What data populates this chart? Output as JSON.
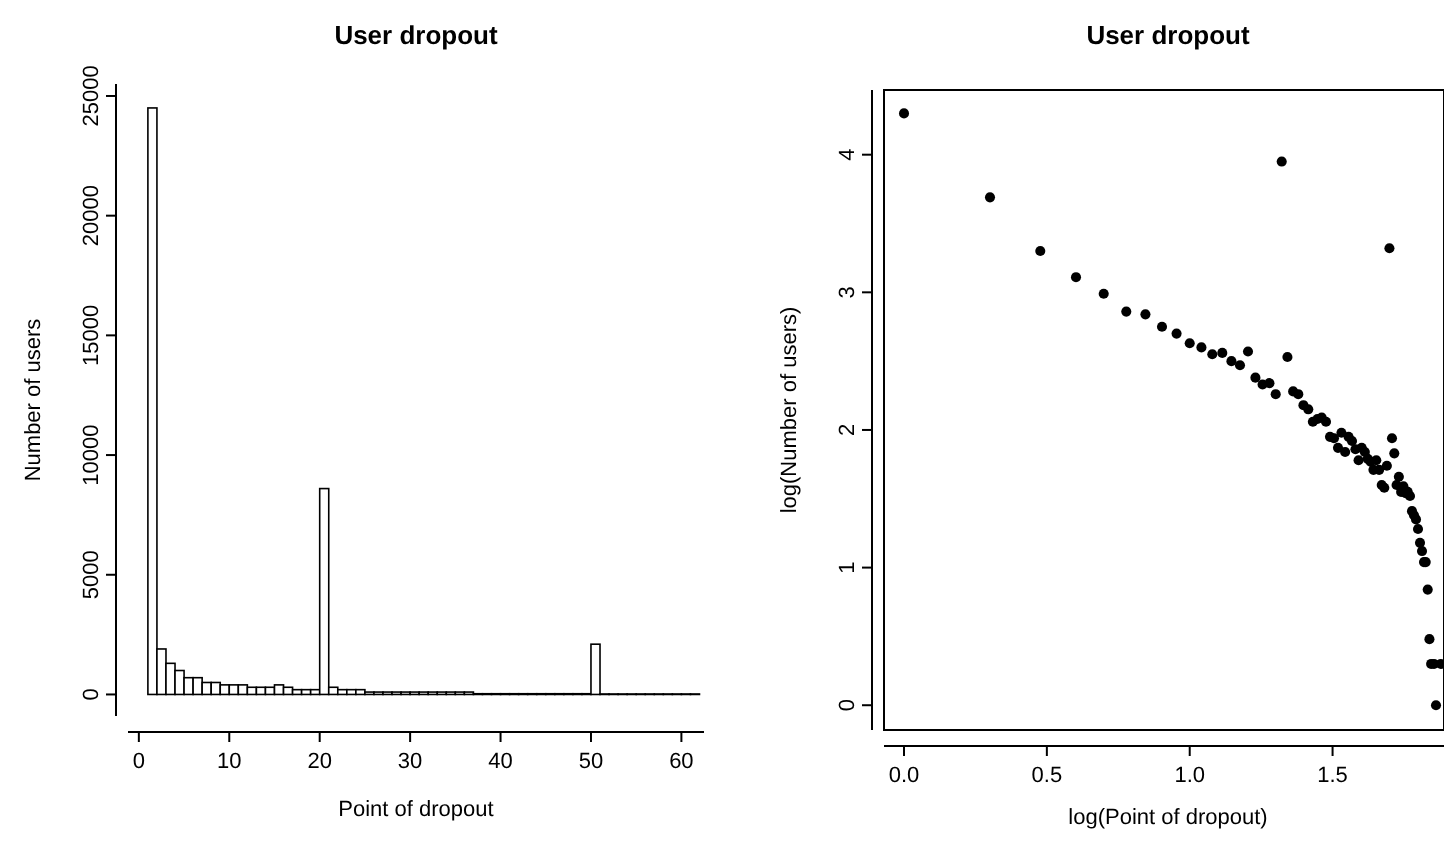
{
  "chart_data": [
    {
      "type": "histogram",
      "title": "User dropout",
      "xlabel": "Point of dropout",
      "ylabel": "Number of users",
      "bins": [
        1,
        2,
        3,
        4,
        5,
        6,
        7,
        8,
        9,
        10,
        11,
        12,
        13,
        14,
        15,
        16,
        17,
        18,
        19,
        20,
        21,
        22,
        23,
        24,
        25,
        26,
        27,
        28,
        29,
        30,
        31,
        32,
        33,
        34,
        35,
        36,
        37,
        38,
        39,
        40,
        41,
        42,
        43,
        44,
        45,
        46,
        47,
        48,
        49,
        50,
        51,
        52,
        53,
        54,
        55,
        56,
        57,
        58,
        59,
        60,
        61,
        62
      ],
      "values": [
        24500,
        1900,
        1300,
        1000,
        700,
        700,
        500,
        500,
        400,
        400,
        400,
        300,
        300,
        300,
        400,
        300,
        200,
        200,
        200,
        8600,
        300,
        200,
        200,
        200,
        100,
        100,
        100,
        100,
        100,
        100,
        100,
        100,
        100,
        100,
        100,
        100,
        30,
        30,
        30,
        30,
        30,
        30,
        30,
        30,
        30,
        30,
        30,
        30,
        30,
        2100,
        20,
        20,
        20,
        20,
        20,
        20,
        20,
        20,
        20,
        20,
        20
      ],
      "color": "#ffffff",
      "xlim": [
        -1.2,
        62.5
      ],
      "ylim": [
        -900,
        25500
      ],
      "xticks": [
        0,
        10,
        20,
        30,
        40,
        50,
        60
      ],
      "yticks": [
        0,
        5000,
        10000,
        15000,
        20000,
        25000
      ]
    },
    {
      "type": "scatter",
      "title": "User dropout",
      "xlabel": "log(Point of dropout)",
      "ylabel": "log(Number of users)",
      "marker": "circle",
      "series": [
        {
          "color": "#000000",
          "x": [
            0,
            0.301,
            0.477,
            0.602,
            0.699,
            0.778,
            0.845,
            0.903,
            0.954,
            1,
            1.041,
            1.079,
            1.114,
            1.146,
            1.176,
            1.204,
            1.23,
            1.255,
            1.279,
            1.301,
            1.322,
            1.342,
            1.362,
            1.38,
            1.398,
            1.415,
            1.431,
            1.447,
            1.462,
            1.477,
            1.491,
            1.505,
            1.519,
            1.531,
            1.544,
            1.556,
            1.568,
            1.58,
            1.591,
            1.602,
            1.613,
            1.623,
            1.633,
            1.643,
            1.653,
            1.663,
            1.672,
            1.681,
            1.69,
            1.699,
            1.708,
            1.716,
            1.724,
            1.732,
            1.74,
            1.748,
            1.756,
            1.763,
            1.771,
            1.778,
            1.785,
            1.792,
            1.799,
            1.806,
            1.813,
            1.82,
            1.826,
            1.833,
            1.839,
            1.845,
            1.855,
            1.862,
            1.879
          ],
          "values": [
            4.3,
            3.69,
            3.3,
            3.11,
            2.99,
            2.86,
            2.84,
            2.75,
            2.7,
            2.63,
            2.6,
            2.55,
            2.56,
            2.5,
            2.47,
            2.57,
            2.38,
            2.33,
            2.34,
            2.26,
            3.95,
            2.53,
            2.28,
            2.26,
            2.18,
            2.15,
            2.06,
            2.08,
            2.09,
            2.06,
            1.95,
            1.94,
            1.87,
            1.98,
            1.84,
            1.95,
            1.92,
            1.86,
            1.78,
            1.87,
            1.84,
            1.79,
            1.77,
            1.71,
            1.78,
            1.71,
            1.6,
            1.58,
            1.74,
            3.32,
            1.94,
            1.83,
            1.6,
            1.66,
            1.55,
            1.59,
            1.54,
            1.55,
            1.52,
            1.41,
            1.38,
            1.35,
            1.28,
            1.18,
            1.12,
            1.04,
            1.04,
            0.84,
            0.48,
            0.3,
            0.3,
            0,
            0.3
          ]
        }
      ],
      "xlim": [
        -0.07,
        1.89
      ],
      "ylim": [
        -0.18,
        4.47
      ],
      "xticks": [
        {
          "value": 0,
          "label": "0.0"
        },
        {
          "value": 0.5,
          "label": "0.5"
        },
        {
          "value": 1,
          "label": "1.0"
        },
        {
          "value": 1.5,
          "label": "1.5"
        }
      ],
      "yticks": [
        0,
        1,
        2,
        3,
        4
      ]
    }
  ]
}
